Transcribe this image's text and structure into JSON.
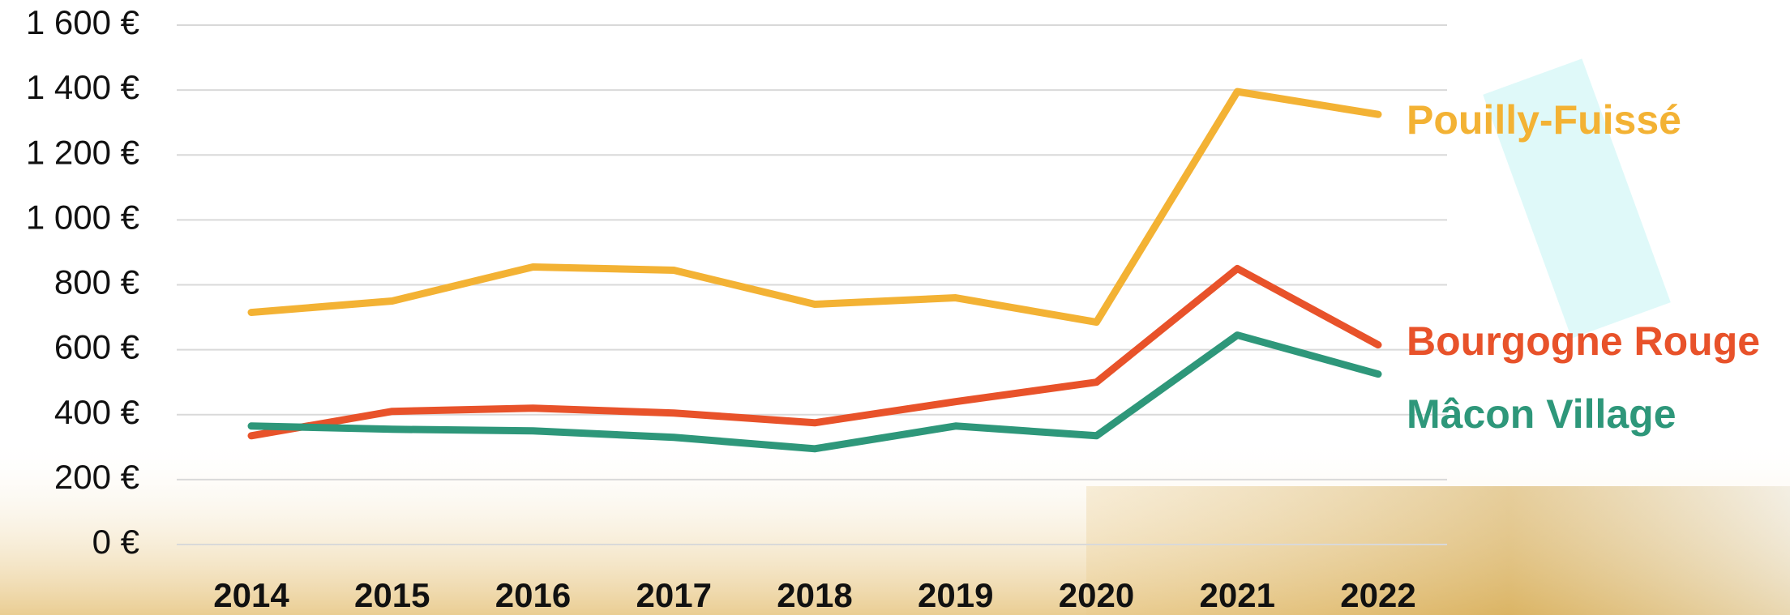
{
  "chart_data": {
    "type": "line",
    "categories": [
      "2014",
      "2015",
      "2016",
      "2017",
      "2018",
      "2019",
      "2020",
      "2021",
      "2022"
    ],
    "series": [
      {
        "name": "Pouilly-Fuissé",
        "color": "#f3b234",
        "values": [
          715,
          750,
          855,
          845,
          740,
          760,
          685,
          1395,
          1325
        ]
      },
      {
        "name": "Bourgogne Rouge",
        "color": "#e8522a",
        "values": [
          335,
          410,
          420,
          405,
          375,
          440,
          500,
          850,
          615
        ]
      },
      {
        "name": "Mâcon Village",
        "color": "#2e977a",
        "values": [
          365,
          355,
          350,
          330,
          295,
          365,
          335,
          645,
          525
        ]
      }
    ],
    "ylim": [
      0,
      1600
    ],
    "yticks": [
      {
        "value": 0,
        "label": "0 €"
      },
      {
        "value": 200,
        "label": "200 €"
      },
      {
        "value": 400,
        "label": "400 €"
      },
      {
        "value": 600,
        "label": "600 €"
      },
      {
        "value": 800,
        "label": "800 €"
      },
      {
        "value": 1000,
        "label": "1 000 €"
      },
      {
        "value": 1200,
        "label": "1 200 €"
      },
      {
        "value": 1400,
        "label": "1 400 €"
      },
      {
        "value": 1600,
        "label": "1 600 €"
      }
    ],
    "grid": true
  }
}
